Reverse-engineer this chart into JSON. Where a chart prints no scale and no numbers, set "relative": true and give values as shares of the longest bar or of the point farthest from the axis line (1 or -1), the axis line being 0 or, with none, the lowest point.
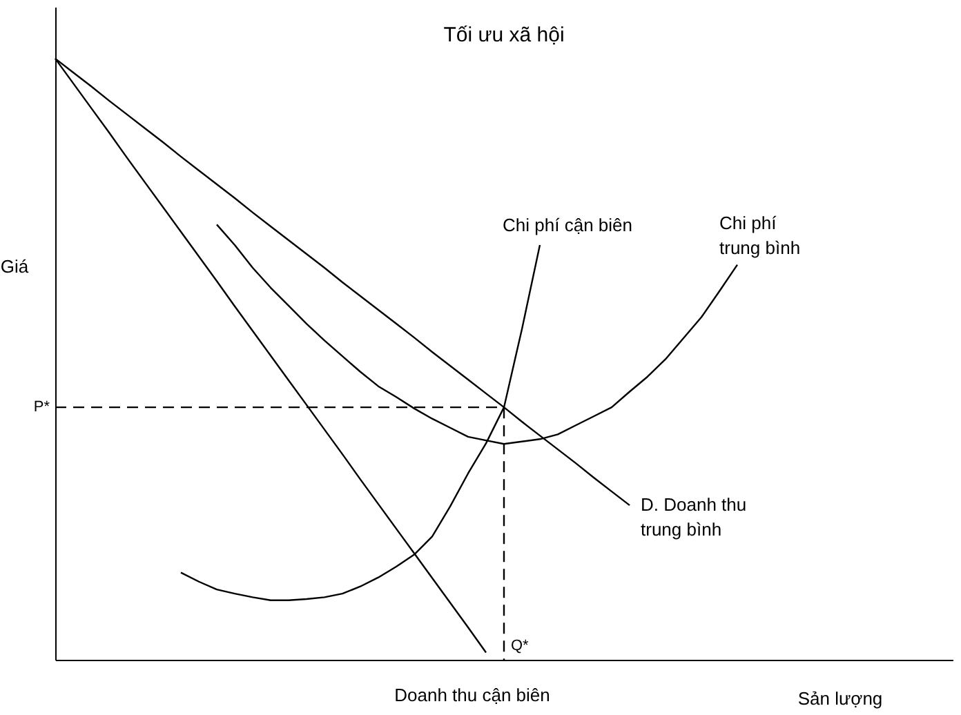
{
  "chart_data": {
    "type": "line",
    "relative": true,
    "title": "Tối ưu xã hội",
    "xlabel": "Sản lượng",
    "ylabel": "Giá",
    "legend": false,
    "marker": "none",
    "categories": [
      null,
      null,
      null,
      null,
      null,
      null,
      null,
      null,
      null,
      null,
      null,
      null,
      null,
      null,
      null,
      null,
      null,
      null,
      null,
      null,
      null,
      null,
      null,
      null,
      null,
      null,
      null,
      null,
      null,
      null,
      null,
      null,
      null,
      null,
      null,
      null,
      null,
      null,
      null,
      null,
      null,
      null,
      null,
      null,
      null,
      null,
      null,
      null,
      null,
      null,
      null
    ],
    "annotations": [
      "P*",
      "Q*"
    ],
    "series": [
      {
        "name": "Chi phí cận biên",
        "color": "#000000",
        "values": [
          null,
          null,
          null,
          null,
          null,
          null,
          null,
          0.145,
          0.13,
          0.117,
          0.11,
          0.104,
          0.099,
          0.099,
          0.101,
          0.104,
          0.11,
          0.122,
          0.137,
          0.155,
          0.175,
          0.205,
          0.255,
          0.31,
          0.36,
          0.42,
          0.55,
          0.69,
          null,
          null,
          null,
          null,
          null,
          null,
          null,
          null,
          null,
          null,
          null,
          null,
          null,
          null,
          null,
          null,
          null,
          null,
          null,
          null,
          null,
          null,
          null
        ]
      },
      {
        "name": "Chi phí trung bình",
        "color": "#000000",
        "values": [
          null,
          null,
          null,
          null,
          null,
          null,
          null,
          null,
          null,
          0.724,
          0.69,
          0.652,
          0.619,
          0.589,
          0.559,
          0.531,
          0.505,
          0.479,
          0.455,
          0.437,
          0.418,
          0.401,
          0.386,
          0.371,
          0.365,
          0.359,
          0.363,
          0.367,
          0.375,
          0.39,
          0.405,
          0.42,
          0.446,
          0.471,
          0.5,
          0.535,
          0.57,
          0.613,
          0.657,
          null,
          null,
          null,
          null,
          null,
          null,
          null,
          null,
          null,
          null,
          null,
          null
        ]
      },
      {
        "name": "D. Doanh thu trung bình",
        "color": "#000000",
        "values": [
          1,
          0.977,
          0.954,
          0.93,
          0.907,
          0.884,
          0.861,
          0.837,
          0.814,
          0.791,
          0.768,
          0.744,
          0.721,
          0.698,
          0.675,
          0.652,
          0.628,
          0.605,
          0.582,
          0.559,
          0.536,
          0.512,
          0.489,
          0.466,
          0.443,
          0.42,
          0.396,
          0.373,
          0.35,
          0.327,
          0.303,
          0.28,
          0.257,
          null,
          null,
          null,
          null,
          null,
          null,
          null,
          null,
          null,
          null,
          null,
          null,
          null,
          null,
          null,
          null,
          null,
          null
        ]
      },
      {
        "name": "Doanh thu cận biên",
        "color": "#000000",
        "values": [
          1,
          0.959,
          0.918,
          0.877,
          0.835,
          0.794,
          0.753,
          0.712,
          0.671,
          0.63,
          0.588,
          0.547,
          0.506,
          0.465,
          0.424,
          0.383,
          0.342,
          0.3,
          0.259,
          0.218,
          0.177,
          0.136,
          0.095,
          0.054,
          0.012,
          null,
          null,
          null,
          null,
          null,
          null,
          null,
          null,
          null,
          null,
          null,
          null,
          null,
          null,
          null,
          null,
          null,
          null,
          null,
          null,
          null,
          null,
          null,
          null,
          null,
          null
        ]
      },
      {
        "color": "#000000",
        "line_style": "dashed",
        "values": [
          0.42,
          0.42,
          0.42,
          0.42,
          0.42,
          0.42,
          0.42,
          0.42,
          0.42,
          0.42,
          0.42,
          0.42,
          0.42,
          0.42,
          0.42,
          0.42,
          0.42,
          0.42,
          0.42,
          0.42,
          0.42,
          0.42,
          0.42,
          0.42,
          0.42,
          0.42,
          null,
          null,
          null,
          null,
          null,
          null,
          null,
          null,
          null,
          null,
          null,
          null,
          null,
          null,
          null,
          null,
          null,
          null,
          null,
          null,
          null,
          null,
          null,
          null,
          null
        ]
      }
    ]
  }
}
